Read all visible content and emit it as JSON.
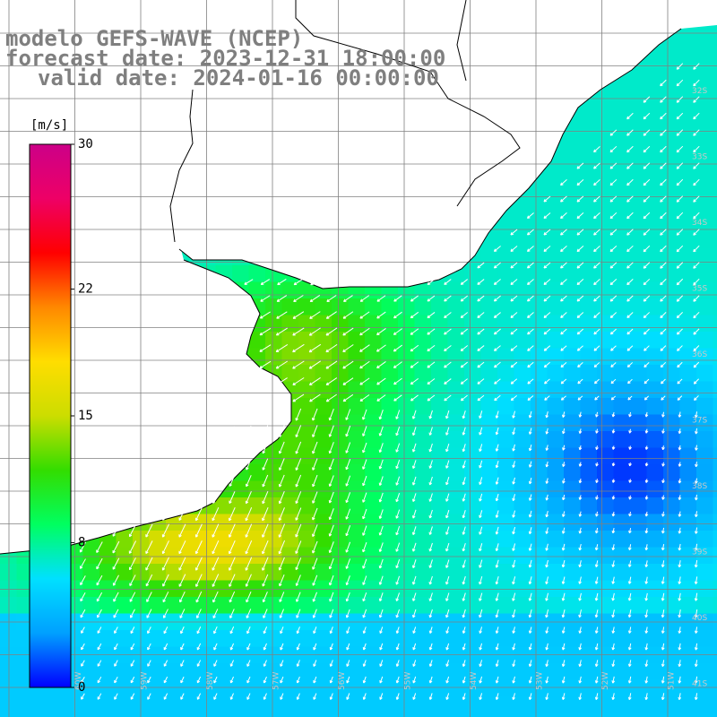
{
  "title": {
    "model": "modelo GEFS-WAVE (NCEP)",
    "forecast": "forecast date: 2023-12-31 18:00:00",
    "valid": "valid date: 2024-01-16 00:00:00"
  },
  "colorbar": {
    "unit": "[m/s]",
    "ticks": [
      {
        "label": "30",
        "value": 30
      },
      {
        "label": "22",
        "value": 22
      },
      {
        "label": "15",
        "value": 15
      },
      {
        "label": "8",
        "value": 8
      },
      {
        "label": "0",
        "value": 0
      }
    ],
    "colors": [
      "#0000ff",
      "#00a0ff",
      "#00e0ff",
      "#00ff60",
      "#33dd00",
      "#ccdd00",
      "#ffdd00",
      "#ff8800",
      "#ff0000",
      "#ee0066",
      "#cc0088"
    ]
  },
  "grid": {
    "lat_labels": [
      "32S",
      "33S",
      "34S",
      "35S",
      "36S",
      "37S",
      "38S",
      "39S",
      "40S",
      "41S"
    ],
    "lon_labels": [
      "60W",
      "59W",
      "58W",
      "57W",
      "56W",
      "55W",
      "54W",
      "53W",
      "52W",
      "51W"
    ]
  },
  "layers": {
    "field": "wind speed",
    "vectors": "wind direction arrows",
    "land_color": "#ffffff",
    "coast_color": "#000000",
    "grid_color": "#808080"
  }
}
